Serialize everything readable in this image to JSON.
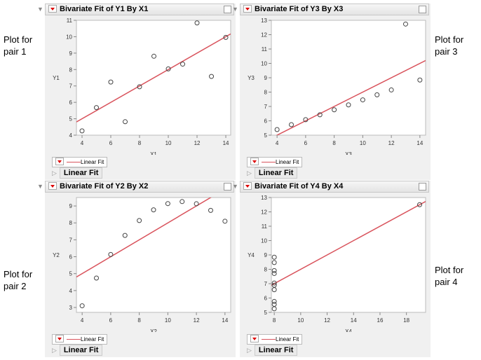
{
  "side_labels": [
    "Plot for\npair 1",
    "Plot for\npair 2",
    "Plot for\npair 3",
    "Plot for\npair 4"
  ],
  "legend_label": "Linear Fit",
  "outline_label": "Linear Fit",
  "colors": {
    "fit": "#d9535c",
    "points": "#444444"
  },
  "chart_data": [
    {
      "type": "scatter",
      "title": "Bivariate Fit of Y1 By X1",
      "xlabel": "X1",
      "ylabel": "Y1",
      "xlim": [
        3.61,
        14.34
      ],
      "ylim": [
        4,
        11
      ],
      "xticks": [
        4,
        6,
        8,
        10,
        12,
        14
      ],
      "yticks": [
        4,
        5,
        6,
        7,
        8,
        9,
        10,
        11
      ],
      "x": [
        10,
        8,
        13,
        9,
        11,
        14,
        6,
        4,
        12,
        7,
        5
      ],
      "y": [
        8.04,
        6.95,
        7.58,
        8.81,
        8.33,
        9.96,
        7.24,
        4.26,
        10.84,
        4.82,
        5.68
      ],
      "fit": {
        "intercept": 3.0,
        "slope": 0.5
      }
    },
    {
      "type": "scatter",
      "title": "Bivariate Fit of Y2 By X2",
      "xlabel": "X2",
      "ylabel": "Y2",
      "xlim": [
        3.6,
        14.4
      ],
      "ylim": [
        2.71,
        9.5
      ],
      "xticks": [
        4,
        6,
        8,
        10,
        12,
        14
      ],
      "yticks": [
        3,
        4,
        5,
        6,
        7,
        8,
        9
      ],
      "x": [
        10,
        8,
        13,
        9,
        11,
        14,
        6,
        4,
        12,
        7,
        5
      ],
      "y": [
        9.14,
        8.14,
        8.74,
        8.77,
        9.26,
        8.1,
        6.13,
        3.1,
        9.13,
        7.26,
        4.74
      ],
      "fit": {
        "intercept": 3.0,
        "slope": 0.5
      }
    },
    {
      "type": "scatter",
      "title": "Bivariate Fit of Y3 By X3",
      "xlabel": "X3",
      "ylabel": "Y3",
      "xlim": [
        3.6,
        14.4
      ],
      "ylim": [
        5,
        13
      ],
      "xticks": [
        4,
        6,
        8,
        10,
        12,
        14
      ],
      "yticks": [
        5,
        6,
        7,
        8,
        9,
        10,
        11,
        12,
        13
      ],
      "x": [
        10,
        8,
        13,
        9,
        11,
        14,
        6,
        4,
        12,
        7,
        5
      ],
      "y": [
        7.46,
        6.77,
        12.74,
        7.11,
        7.81,
        8.84,
        6.08,
        5.39,
        8.15,
        6.42,
        5.73
      ],
      "fit": {
        "intercept": 3.0,
        "slope": 0.5
      }
    },
    {
      "type": "scatter",
      "title": "Bivariate Fit of Y4 By X4",
      "xlabel": "X4",
      "ylabel": "Y4",
      "xlim": [
        7.78,
        19.45
      ],
      "ylim": [
        5,
        13
      ],
      "xticks": [
        8,
        10,
        12,
        14,
        16,
        18
      ],
      "yticks": [
        5,
        6,
        7,
        8,
        9,
        10,
        11,
        12,
        13
      ],
      "x": [
        8,
        8,
        8,
        8,
        8,
        8,
        8,
        19,
        8,
        8,
        8
      ],
      "y": [
        6.58,
        5.76,
        7.71,
        8.84,
        8.47,
        7.04,
        5.25,
        12.5,
        5.56,
        7.91,
        6.89
      ],
      "fit": {
        "intercept": 3.0,
        "slope": 0.5
      }
    }
  ]
}
